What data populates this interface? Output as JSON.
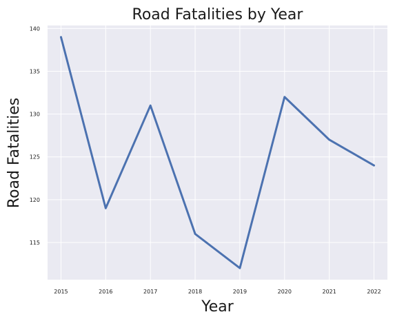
{
  "chart_data": {
    "type": "line",
    "title": "Road Fatalities by Year",
    "xlabel": "Year",
    "ylabel": "Road Fatalities",
    "x": [
      2015,
      2016,
      2017,
      2018,
      2019,
      2020,
      2021,
      2022
    ],
    "series": [
      {
        "values": [
          139,
          119,
          131,
          116,
          112,
          132,
          127,
          124
        ]
      }
    ],
    "xticks": [
      "2015",
      "2016",
      "2017",
      "2018",
      "2019",
      "2020",
      "2021",
      "2022"
    ],
    "yticks": [
      115,
      120,
      125,
      130,
      135,
      140
    ],
    "xlim": [
      2014.7,
      2022.3
    ],
    "ylim": [
      110.65,
      140.35
    ],
    "grid": true,
    "legend": "none",
    "colors": {
      "line": "#4c72b0",
      "background": "#eaeaf2",
      "grid": "#ffffff"
    }
  }
}
